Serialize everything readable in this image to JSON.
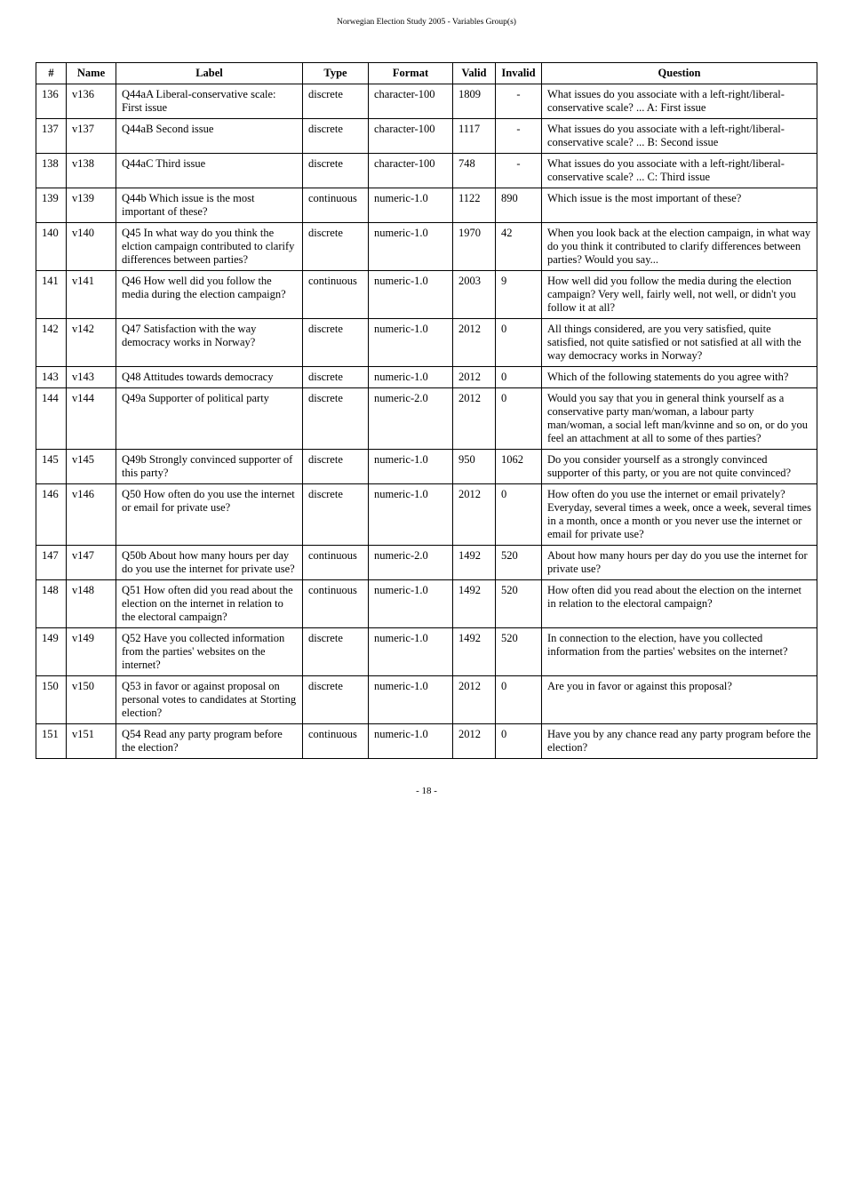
{
  "doc_title": "Norwegian Election Study 2005 - Variables Group(s)",
  "page_footer": "- 18 -",
  "table": {
    "columns": [
      "#",
      "Name",
      "Label",
      "Type",
      "Format",
      "Valid",
      "Invalid",
      "Question"
    ],
    "rows": [
      {
        "num": "136",
        "name": "v136",
        "label": "Q44aA Liberal-conservative scale: First issue",
        "type": "discrete",
        "format": "character-100",
        "valid": "1809",
        "invalid": "-",
        "question": "What issues do you associate with a left-right/liberal-conservative scale? ... A: First issue"
      },
      {
        "num": "137",
        "name": "v137",
        "label": "Q44aB Second issue",
        "type": "discrete",
        "format": "character-100",
        "valid": "1117",
        "invalid": "-",
        "question": "What issues do you associate with a left-right/liberal-conservative scale? ... B: Second issue"
      },
      {
        "num": "138",
        "name": "v138",
        "label": "Q44aC Third issue",
        "type": "discrete",
        "format": "character-100",
        "valid": "748",
        "invalid": "-",
        "question": "What issues do you associate with a left-right/liberal-conservative scale? ... C: Third issue"
      },
      {
        "num": "139",
        "name": "v139",
        "label": "Q44b Which issue is the most important of these?",
        "type": "continuous",
        "format": "numeric-1.0",
        "valid": "1122",
        "invalid": "890",
        "question": "Which issue is the most important of these?"
      },
      {
        "num": "140",
        "name": "v140",
        "label": "Q45 In what way do you think the elction campaign contributed to clarify differences between parties?",
        "type": "discrete",
        "format": "numeric-1.0",
        "valid": "1970",
        "invalid": "42",
        "question": "When you look back at the election campaign, in what way do you think it contributed to clarify differences between parties? Would you say..."
      },
      {
        "num": "141",
        "name": "v141",
        "label": "Q46 How well did you follow the media during the election campaign?",
        "type": "continuous",
        "format": "numeric-1.0",
        "valid": "2003",
        "invalid": "9",
        "question": "How well did you follow the media during the election campaign? Very well, fairly well, not well, or didn't you follow it at all?"
      },
      {
        "num": "142",
        "name": "v142",
        "label": "Q47 Satisfaction with the way democracy works in Norway?",
        "type": "discrete",
        "format": "numeric-1.0",
        "valid": "2012",
        "invalid": "0",
        "question": "All things considered, are you very satisfied, quite satisfied, not quite satisfied or not satisfied at all with the way democracy works in Norway?"
      },
      {
        "num": "143",
        "name": "v143",
        "label": "Q48 Attitudes towards democracy",
        "type": "discrete",
        "format": "numeric-1.0",
        "valid": "2012",
        "invalid": "0",
        "question": "Which of the following statements do you agree with?"
      },
      {
        "num": "144",
        "name": "v144",
        "label": "Q49a Supporter of political party",
        "type": "discrete",
        "format": "numeric-2.0",
        "valid": "2012",
        "invalid": "0",
        "question": "Would you say that you in general think yourself as a conservative party man/woman, a labour party man/woman, a social left man/kvinne and so on, or do you feel an attachment at all to some of thes parties?"
      },
      {
        "num": "145",
        "name": "v145",
        "label": "Q49b Strongly convinced supporter of this party?",
        "type": "discrete",
        "format": "numeric-1.0",
        "valid": "950",
        "invalid": "1062",
        "question": "Do you consider yourself as a strongly convinced supporter of this party, or you are not quite convinced?"
      },
      {
        "num": "146",
        "name": "v146",
        "label": "Q50 How often do you use the internet or email for private use?",
        "type": "discrete",
        "format": "numeric-1.0",
        "valid": "2012",
        "invalid": "0",
        "question": "How often do you use the internet or email privately? Everyday, several times a week, once a week, several times in a month, once a month or you never use the internet or email for private use?"
      },
      {
        "num": "147",
        "name": "v147",
        "label": "Q50b About how many hours per day do you use the internet for private use?",
        "type": "continuous",
        "format": "numeric-2.0",
        "valid": "1492",
        "invalid": "520",
        "question": "About how many hours per day do you use the internet for private use?"
      },
      {
        "num": "148",
        "name": "v148",
        "label": "Q51 How often did you read about the election on the internet in relation to the electoral campaign?",
        "type": "continuous",
        "format": "numeric-1.0",
        "valid": "1492",
        "invalid": "520",
        "question": "How often did you read about the election on the internet in relation to the electoral campaign?"
      },
      {
        "num": "149",
        "name": "v149",
        "label": "Q52 Have you collected information from the parties' websites on the internet?",
        "type": "discrete",
        "format": "numeric-1.0",
        "valid": "1492",
        "invalid": "520",
        "question": "In connection to the election, have you collected information from the parties' websites on the internet?"
      },
      {
        "num": "150",
        "name": "v150",
        "label": "Q53 in favor or against proposal on personal votes to candidates at Storting election?",
        "type": "discrete",
        "format": "numeric-1.0",
        "valid": "2012",
        "invalid": "0",
        "question": "Are you in favor or against this proposal?"
      },
      {
        "num": "151",
        "name": "v151",
        "label": "Q54 Read any party program before the election?",
        "type": "continuous",
        "format": "numeric-1.0",
        "valid": "2012",
        "invalid": "0",
        "question": "Have you by any chance read any party program before the election?"
      }
    ]
  }
}
